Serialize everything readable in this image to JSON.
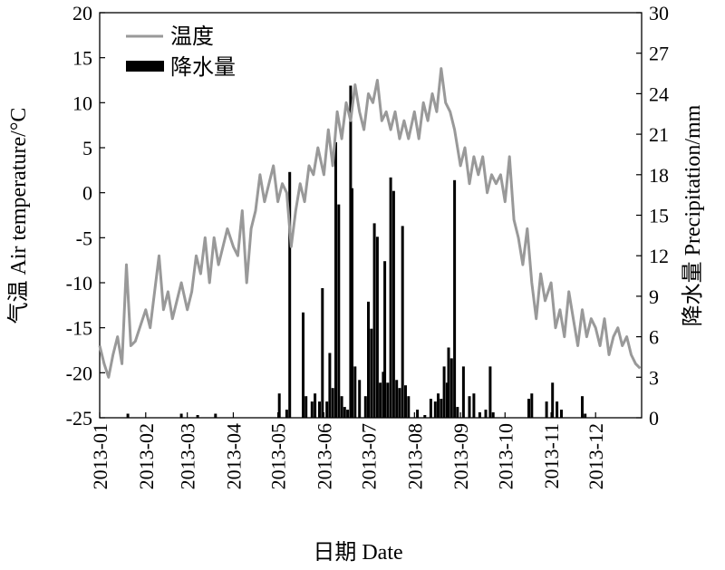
{
  "chart_data": {
    "type": "bar+line",
    "xlabel": "日期 Date",
    "ylabel_left": "气温 Air temperature/°C",
    "ylabel_right": "降水量 Precipitation/mm",
    "x_ticks": [
      "2013-01",
      "2013-02",
      "2013-03",
      "2013-04",
      "2013-05",
      "2013-06",
      "2013-07",
      "2013-08",
      "2013-09",
      "2013-10",
      "2013-11",
      "2013-12"
    ],
    "y_left": {
      "ylim": [
        -25,
        20
      ],
      "ticks": [
        20,
        15,
        10,
        5,
        0,
        -5,
        -10,
        -15,
        -20,
        -25
      ]
    },
    "y_right": {
      "ylim": [
        0,
        30
      ],
      "ticks": [
        30,
        27,
        24,
        21,
        18,
        15,
        12,
        9,
        6,
        3,
        0
      ]
    },
    "grid": false,
    "legend": {
      "position": "top-left",
      "entries": [
        {
          "label": "温度",
          "series": "temperature",
          "color": "#999999"
        },
        {
          "label": "降水量",
          "series": "precipitation",
          "color": "#000000"
        }
      ]
    },
    "series": [
      {
        "key": "temperature",
        "type": "line",
        "axis": "left",
        "color": "#999999",
        "points": [
          [
            "2013-01-01",
            -17
          ],
          [
            "2013-01-04",
            -19
          ],
          [
            "2013-01-07",
            -20.5
          ],
          [
            "2013-01-10",
            -18
          ],
          [
            "2013-01-13",
            -16
          ],
          [
            "2013-01-16",
            -19
          ],
          [
            "2013-01-19",
            -8
          ],
          [
            "2013-01-22",
            -17
          ],
          [
            "2013-01-25",
            -16.5
          ],
          [
            "2013-01-28",
            -15
          ],
          [
            "2013-02-01",
            -13
          ],
          [
            "2013-02-04",
            -15
          ],
          [
            "2013-02-07",
            -11
          ],
          [
            "2013-02-10",
            -7
          ],
          [
            "2013-02-13",
            -13
          ],
          [
            "2013-02-16",
            -11
          ],
          [
            "2013-02-19",
            -14
          ],
          [
            "2013-02-22",
            -12
          ],
          [
            "2013-02-25",
            -10
          ],
          [
            "2013-03-01",
            -13
          ],
          [
            "2013-03-04",
            -11
          ],
          [
            "2013-03-07",
            -7
          ],
          [
            "2013-03-10",
            -9
          ],
          [
            "2013-03-13",
            -5
          ],
          [
            "2013-03-16",
            -10
          ],
          [
            "2013-03-19",
            -5
          ],
          [
            "2013-03-22",
            -8
          ],
          [
            "2013-03-25",
            -6
          ],
          [
            "2013-03-28",
            -4
          ],
          [
            "2013-04-01",
            -6
          ],
          [
            "2013-04-04",
            -7
          ],
          [
            "2013-04-07",
            -2
          ],
          [
            "2013-04-10",
            -10
          ],
          [
            "2013-04-13",
            -4
          ],
          [
            "2013-04-16",
            -2
          ],
          [
            "2013-04-19",
            2
          ],
          [
            "2013-04-22",
            -1
          ],
          [
            "2013-04-25",
            1
          ],
          [
            "2013-04-28",
            3
          ],
          [
            "2013-05-01",
            -1
          ],
          [
            "2013-05-04",
            1
          ],
          [
            "2013-05-07",
            0
          ],
          [
            "2013-05-10",
            -6
          ],
          [
            "2013-05-13",
            -2
          ],
          [
            "2013-05-16",
            1
          ],
          [
            "2013-05-19",
            -1
          ],
          [
            "2013-05-22",
            3
          ],
          [
            "2013-05-25",
            2
          ],
          [
            "2013-05-28",
            5
          ],
          [
            "2013-06-01",
            2
          ],
          [
            "2013-06-04",
            7
          ],
          [
            "2013-06-07",
            3
          ],
          [
            "2013-06-10",
            9
          ],
          [
            "2013-06-13",
            6
          ],
          [
            "2013-06-16",
            10
          ],
          [
            "2013-06-19",
            8
          ],
          [
            "2013-06-22",
            12
          ],
          [
            "2013-06-25",
            9
          ],
          [
            "2013-06-28",
            7
          ],
          [
            "2013-07-01",
            11
          ],
          [
            "2013-07-04",
            10
          ],
          [
            "2013-07-07",
            12.5
          ],
          [
            "2013-07-10",
            8
          ],
          [
            "2013-07-13",
            9
          ],
          [
            "2013-07-16",
            7
          ],
          [
            "2013-07-19",
            9
          ],
          [
            "2013-07-22",
            6
          ],
          [
            "2013-07-25",
            8
          ],
          [
            "2013-07-28",
            6
          ],
          [
            "2013-08-01",
            9
          ],
          [
            "2013-08-04",
            6
          ],
          [
            "2013-08-07",
            10
          ],
          [
            "2013-08-10",
            8
          ],
          [
            "2013-08-13",
            11
          ],
          [
            "2013-08-16",
            9
          ],
          [
            "2013-08-19",
            13.8
          ],
          [
            "2013-08-22",
            10
          ],
          [
            "2013-08-25",
            9
          ],
          [
            "2013-08-28",
            7
          ],
          [
            "2013-09-01",
            3
          ],
          [
            "2013-09-04",
            5
          ],
          [
            "2013-09-07",
            1
          ],
          [
            "2013-09-10",
            4
          ],
          [
            "2013-09-13",
            2
          ],
          [
            "2013-09-16",
            4
          ],
          [
            "2013-09-19",
            0
          ],
          [
            "2013-09-22",
            2
          ],
          [
            "2013-09-25",
            1
          ],
          [
            "2013-09-28",
            2
          ],
          [
            "2013-10-01",
            -1
          ],
          [
            "2013-10-04",
            4
          ],
          [
            "2013-10-07",
            -3
          ],
          [
            "2013-10-10",
            -5
          ],
          [
            "2013-10-13",
            -8
          ],
          [
            "2013-10-16",
            -4
          ],
          [
            "2013-10-19",
            -10
          ],
          [
            "2013-10-22",
            -14
          ],
          [
            "2013-10-25",
            -9
          ],
          [
            "2013-10-28",
            -12
          ],
          [
            "2013-11-01",
            -10
          ],
          [
            "2013-11-04",
            -15
          ],
          [
            "2013-11-07",
            -13
          ],
          [
            "2013-11-10",
            -16
          ],
          [
            "2013-11-13",
            -11
          ],
          [
            "2013-11-16",
            -14
          ],
          [
            "2013-11-19",
            -17
          ],
          [
            "2013-11-22",
            -13
          ],
          [
            "2013-11-25",
            -16
          ],
          [
            "2013-11-28",
            -14
          ],
          [
            "2013-12-01",
            -15
          ],
          [
            "2013-12-04",
            -17
          ],
          [
            "2013-12-07",
            -14
          ],
          [
            "2013-12-10",
            -18
          ],
          [
            "2013-12-13",
            -16
          ],
          [
            "2013-12-16",
            -15
          ],
          [
            "2013-12-19",
            -17
          ],
          [
            "2013-12-22",
            -16
          ],
          [
            "2013-12-25",
            -18
          ],
          [
            "2013-12-28",
            -19
          ],
          [
            "2013-12-31",
            -19.5
          ]
        ]
      },
      {
        "key": "precipitation",
        "type": "bar",
        "axis": "right",
        "color": "#000000",
        "points": [
          [
            "2013-01-20",
            0.3
          ],
          [
            "2013-02-25",
            0.3
          ],
          [
            "2013-03-08",
            0.2
          ],
          [
            "2013-03-20",
            0.3
          ],
          [
            "2013-05-02",
            1.8
          ],
          [
            "2013-05-07",
            0.6
          ],
          [
            "2013-05-09",
            18.2
          ],
          [
            "2013-05-18",
            7.8
          ],
          [
            "2013-05-20",
            1.6
          ],
          [
            "2013-05-24",
            1.2
          ],
          [
            "2013-05-26",
            1.8
          ],
          [
            "2013-05-29",
            1.2
          ],
          [
            "2013-05-31",
            9.6
          ],
          [
            "2013-06-03",
            1.2
          ],
          [
            "2013-06-05",
            4.8
          ],
          [
            "2013-06-07",
            2.2
          ],
          [
            "2013-06-09",
            20.4
          ],
          [
            "2013-06-11",
            15.8
          ],
          [
            "2013-06-13",
            1.6
          ],
          [
            "2013-06-15",
            0.8
          ],
          [
            "2013-06-17",
            0.6
          ],
          [
            "2013-06-19",
            24.6
          ],
          [
            "2013-06-20",
            17
          ],
          [
            "2013-06-22",
            3.8
          ],
          [
            "2013-06-25",
            2.8
          ],
          [
            "2013-06-29",
            1.6
          ],
          [
            "2013-07-01",
            8.6
          ],
          [
            "2013-07-03",
            6.6
          ],
          [
            "2013-07-05",
            14.4
          ],
          [
            "2013-07-07",
            13.4
          ],
          [
            "2013-07-09",
            2.6
          ],
          [
            "2013-07-11",
            3.4
          ],
          [
            "2013-07-12",
            11.6
          ],
          [
            "2013-07-14",
            2.6
          ],
          [
            "2013-07-16",
            17.8
          ],
          [
            "2013-07-18",
            16.8
          ],
          [
            "2013-07-20",
            2.8
          ],
          [
            "2013-07-22",
            2.2
          ],
          [
            "2013-07-24",
            14.2
          ],
          [
            "2013-07-26",
            2.4
          ],
          [
            "2013-07-28",
            1.6
          ],
          [
            "2013-08-03",
            0.6
          ],
          [
            "2013-08-08",
            0.2
          ],
          [
            "2013-08-12",
            1.4
          ],
          [
            "2013-08-15",
            1.2
          ],
          [
            "2013-08-17",
            1.8
          ],
          [
            "2013-08-19",
            1.4
          ],
          [
            "2013-08-21",
            3.8
          ],
          [
            "2013-08-23",
            2.6
          ],
          [
            "2013-08-24",
            5.2
          ],
          [
            "2013-08-26",
            4.4
          ],
          [
            "2013-08-28",
            17.6
          ],
          [
            "2013-08-30",
            0.8
          ],
          [
            "2013-09-03",
            3.8
          ],
          [
            "2013-09-07",
            1.6
          ],
          [
            "2013-09-10",
            1.8
          ],
          [
            "2013-09-14",
            0.4
          ],
          [
            "2013-09-18",
            0.6
          ],
          [
            "2013-09-21",
            3.8
          ],
          [
            "2013-09-23",
            0.4
          ],
          [
            "2013-10-17",
            1.4
          ],
          [
            "2013-10-19",
            1.8
          ],
          [
            "2013-10-29",
            1.2
          ],
          [
            "2013-11-02",
            2.6
          ],
          [
            "2013-11-05",
            1.2
          ],
          [
            "2013-11-08",
            0.6
          ],
          [
            "2013-11-22",
            1.6
          ],
          [
            "2013-11-24",
            0.3
          ]
        ]
      }
    ]
  }
}
